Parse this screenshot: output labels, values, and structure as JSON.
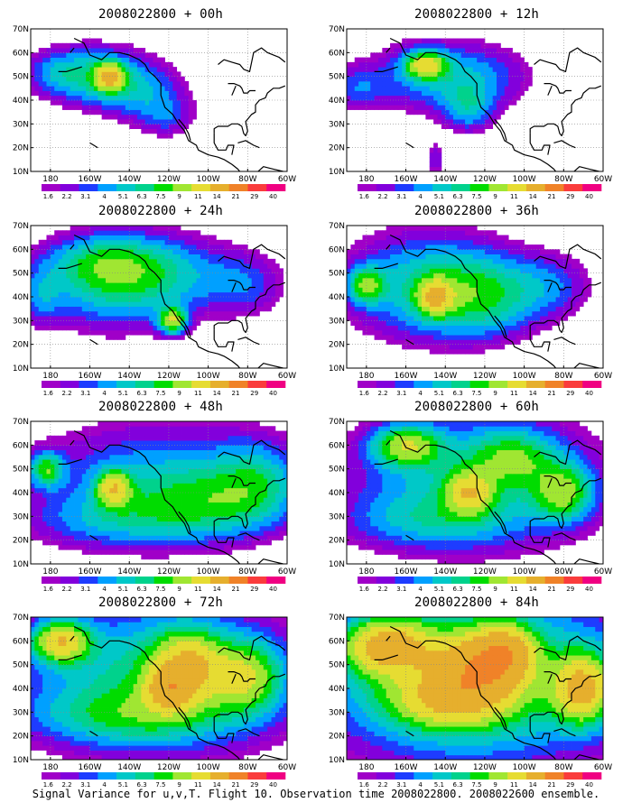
{
  "figure": {
    "caption": "Signal Variance for u,v,T. Flight 10. Observation time 2008022800. 2008022600 ensemble."
  },
  "colorbar": {
    "labels": [
      "1.6",
      "2.2",
      "3.1",
      "4",
      "5.1",
      "6.3",
      "7.5",
      "9",
      "11",
      "14",
      "21",
      "29",
      "40"
    ],
    "colors": [
      "#a000c8",
      "#8200dc",
      "#1e3cff",
      "#00a0ff",
      "#00c8c8",
      "#00d28c",
      "#00dc00",
      "#a0e632",
      "#e6dc32",
      "#e6af2d",
      "#f08228",
      "#fa3c3c",
      "#f00082"
    ],
    "missing_color": "#ffffff"
  },
  "map": {
    "coastline_color": "#000000",
    "grid_style": "dotted gray"
  },
  "chart_data": [
    {
      "type": "heatmap",
      "title": "2008022800 + 00h",
      "forecast_hour": 0,
      "x_ticks": [
        "180",
        "160W",
        "140W",
        "120W",
        "100W",
        "80W",
        "60W"
      ],
      "y_ticks": [
        "10N",
        "20N",
        "30N",
        "40N",
        "50N",
        "60N",
        "70N"
      ],
      "xlim": [
        -190,
        -60
      ],
      "ylim": [
        10,
        70
      ],
      "grid": true,
      "blobs": [
        {
          "lon": -155,
          "lat": 50,
          "amp": 6,
          "slon": 18,
          "slat": 9
        },
        {
          "lon": -150,
          "lat": 50,
          "amp": 10,
          "slon": 5,
          "slat": 4
        },
        {
          "lon": -130,
          "lat": 42,
          "amp": 3.5,
          "slon": 15,
          "slat": 9
        },
        {
          "lon": -178,
          "lat": 52,
          "amp": 3,
          "slon": 12,
          "slat": 7
        },
        {
          "lon": -120,
          "lat": 32,
          "amp": 2.3,
          "slon": 10,
          "slat": 6
        }
      ]
    },
    {
      "type": "heatmap",
      "title": "2008022800 + 12h",
      "forecast_hour": 12,
      "x_ticks": [
        "180",
        "160W",
        "140W",
        "120W",
        "100W",
        "80W",
        "60W"
      ],
      "y_ticks": [
        "10N",
        "20N",
        "30N",
        "40N",
        "50N",
        "60N",
        "70N"
      ],
      "xlim": [
        -190,
        -60
      ],
      "ylim": [
        10,
        70
      ],
      "grid": true,
      "blobs": [
        {
          "lon": -150,
          "lat": 55,
          "amp": 9,
          "slon": 7,
          "slat": 4
        },
        {
          "lon": -150,
          "lat": 50,
          "amp": 4,
          "slon": 22,
          "slat": 11
        },
        {
          "lon": -185,
          "lat": 45,
          "amp": 3,
          "slon": 10,
          "slat": 7
        },
        {
          "lon": -128,
          "lat": 36,
          "amp": 4,
          "slon": 9,
          "slat": 7
        },
        {
          "lon": -120,
          "lat": 50,
          "amp": 3,
          "slon": 20,
          "slat": 10
        },
        {
          "lon": -145,
          "lat": 15,
          "amp": 3,
          "slon": 3,
          "slat": 5
        }
      ]
    },
    {
      "type": "heatmap",
      "title": "2008022800 + 24h",
      "forecast_hour": 24,
      "x_ticks": [
        "180",
        "160W",
        "140W",
        "120W",
        "100W",
        "80W",
        "60W"
      ],
      "y_ticks": [
        "10N",
        "20N",
        "30N",
        "40N",
        "50N",
        "60N",
        "70N"
      ],
      "xlim": [
        -190,
        -60
      ],
      "ylim": [
        10,
        70
      ],
      "grid": true,
      "blobs": [
        {
          "lon": -150,
          "lat": 45,
          "amp": 5,
          "slon": 25,
          "slat": 14
        },
        {
          "lon": -120,
          "lat": 50,
          "amp": 4,
          "slon": 25,
          "slat": 12
        },
        {
          "lon": -118,
          "lat": 30,
          "amp": 9,
          "slon": 5,
          "slat": 4
        },
        {
          "lon": -155,
          "lat": 55,
          "amp": 4,
          "slon": 20,
          "slat": 8
        },
        {
          "lon": -80,
          "lat": 45,
          "amp": 3,
          "slon": 15,
          "slat": 10
        },
        {
          "lon": -185,
          "lat": 40,
          "amp": 3,
          "slon": 8,
          "slat": 9
        }
      ]
    },
    {
      "type": "heatmap",
      "title": "2008022800 + 36h",
      "forecast_hour": 36,
      "x_ticks": [
        "180",
        "160W",
        "140W",
        "120W",
        "100W",
        "80W",
        "60W"
      ],
      "y_ticks": [
        "10N",
        "20N",
        "30N",
        "40N",
        "50N",
        "60N",
        "70N"
      ],
      "xlim": [
        -190,
        -60
      ],
      "ylim": [
        10,
        70
      ],
      "grid": true,
      "blobs": [
        {
          "lon": -150,
          "lat": 45,
          "amp": 6,
          "slon": 30,
          "slat": 16
        },
        {
          "lon": -145,
          "lat": 40,
          "amp": 9,
          "slon": 6,
          "slat": 5
        },
        {
          "lon": -180,
          "lat": 45,
          "amp": 7,
          "slon": 6,
          "slat": 5
        },
        {
          "lon": -120,
          "lat": 40,
          "amp": 5,
          "slon": 20,
          "slat": 12
        },
        {
          "lon": -85,
          "lat": 45,
          "amp": 3,
          "slon": 15,
          "slat": 10
        }
      ]
    },
    {
      "type": "heatmap",
      "title": "2008022800 + 48h",
      "forecast_hour": 48,
      "x_ticks": [
        "180",
        "160W",
        "140W",
        "120W",
        "100W",
        "80W",
        "60W"
      ],
      "y_ticks": [
        "10N",
        "20N",
        "30N",
        "40N",
        "50N",
        "60N",
        "70N"
      ],
      "xlim": [
        -190,
        -60
      ],
      "ylim": [
        10,
        70
      ],
      "grid": true,
      "blobs": [
        {
          "lon": -125,
          "lat": 45,
          "amp": 5,
          "slon": 45,
          "slat": 18
        },
        {
          "lon": -148,
          "lat": 42,
          "amp": 9,
          "slon": 6,
          "slat": 5
        },
        {
          "lon": -182,
          "lat": 50,
          "amp": 7,
          "slon": 6,
          "slat": 5
        },
        {
          "lon": -100,
          "lat": 35,
          "amp": 4,
          "slon": 25,
          "slat": 10
        },
        {
          "lon": -75,
          "lat": 45,
          "amp": 4,
          "slon": 15,
          "slat": 12
        },
        {
          "lon": -150,
          "lat": 28,
          "amp": 3,
          "slon": 30,
          "slat": 8
        }
      ]
    },
    {
      "type": "heatmap",
      "title": "2008022800 + 60h",
      "forecast_hour": 60,
      "x_ticks": [
        "180",
        "160W",
        "140W",
        "120W",
        "100W",
        "80W",
        "60W"
      ],
      "y_ticks": [
        "10N",
        "20N",
        "30N",
        "40N",
        "50N",
        "60N",
        "70N"
      ],
      "xlim": [
        -190,
        -60
      ],
      "ylim": [
        10,
        70
      ],
      "grid": true,
      "blobs": [
        {
          "lon": -125,
          "lat": 45,
          "amp": 6,
          "slon": 45,
          "slat": 20
        },
        {
          "lon": -160,
          "lat": 60,
          "amp": 8,
          "slon": 12,
          "slat": 6
        },
        {
          "lon": -128,
          "lat": 40,
          "amp": 8,
          "slon": 8,
          "slat": 6
        },
        {
          "lon": -80,
          "lat": 40,
          "amp": 7,
          "slon": 10,
          "slat": 8
        },
        {
          "lon": -105,
          "lat": 55,
          "amp": 5,
          "slon": 15,
          "slat": 8
        },
        {
          "lon": -150,
          "lat": 28,
          "amp": 3,
          "slon": 30,
          "slat": 8
        }
      ]
    },
    {
      "type": "heatmap",
      "title": "2008022800 + 72h",
      "forecast_hour": 72,
      "x_ticks": [
        "180",
        "160W",
        "140W",
        "120W",
        "100W",
        "80W",
        "60W"
      ],
      "y_ticks": [
        "10N",
        "20N",
        "30N",
        "40N",
        "50N",
        "60N",
        "70N"
      ],
      "xlim": [
        -190,
        -60
      ],
      "ylim": [
        10,
        70
      ],
      "grid": true,
      "blobs": [
        {
          "lon": -125,
          "lat": 45,
          "amp": 7,
          "slon": 50,
          "slat": 22
        },
        {
          "lon": -175,
          "lat": 60,
          "amp": 11,
          "slon": 10,
          "slat": 6
        },
        {
          "lon": -110,
          "lat": 50,
          "amp": 9,
          "slon": 12,
          "slat": 10
        },
        {
          "lon": -120,
          "lat": 40,
          "amp": 9,
          "slon": 8,
          "slat": 6
        },
        {
          "lon": -80,
          "lat": 45,
          "amp": 7,
          "slon": 12,
          "slat": 10
        },
        {
          "lon": -140,
          "lat": 28,
          "amp": 4,
          "slon": 35,
          "slat": 8
        }
      ]
    },
    {
      "type": "heatmap",
      "title": "2008022800 + 84h",
      "forecast_hour": 84,
      "x_ticks": [
        "180",
        "160W",
        "140W",
        "120W",
        "100W",
        "80W",
        "60W"
      ],
      "y_ticks": [
        "10N",
        "20N",
        "30N",
        "40N",
        "50N",
        "60N",
        "70N"
      ],
      "xlim": [
        -190,
        -60
      ],
      "ylim": [
        10,
        70
      ],
      "grid": true,
      "blobs": [
        {
          "lon": -125,
          "lat": 45,
          "amp": 9,
          "slon": 55,
          "slat": 25
        },
        {
          "lon": -170,
          "lat": 58,
          "amp": 12,
          "slon": 15,
          "slat": 8
        },
        {
          "lon": -125,
          "lat": 48,
          "amp": 10,
          "slon": 15,
          "slat": 10
        },
        {
          "lon": -110,
          "lat": 55,
          "amp": 10,
          "slon": 10,
          "slat": 8
        },
        {
          "lon": -70,
          "lat": 40,
          "amp": 11,
          "slon": 10,
          "slat": 10
        },
        {
          "lon": -140,
          "lat": 35,
          "amp": 7,
          "slon": 20,
          "slat": 8
        }
      ]
    }
  ]
}
